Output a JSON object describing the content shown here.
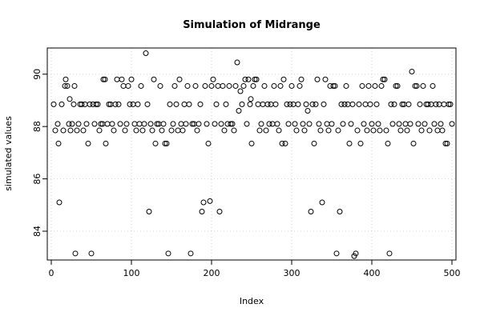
{
  "chart_data": {
    "type": "scatter",
    "title": "Simulation of Midrange",
    "xlabel": "Index",
    "ylabel": "simulated values",
    "xlim": [
      -5,
      505
    ],
    "ylim": [
      82.9,
      91.0
    ],
    "x_ticks": [
      0,
      100,
      200,
      300,
      400,
      500
    ],
    "y_ticks": [
      84,
      86,
      88,
      90
    ],
    "grid": true,
    "marker": "open-circle",
    "series": [
      {
        "points": [
          [
            3,
            88.85
          ],
          [
            5,
            87.85
          ],
          [
            8,
            88.1
          ],
          [
            9,
            87.35
          ],
          [
            10,
            85.1
          ],
          [
            13,
            88.85
          ],
          [
            15,
            87.85
          ],
          [
            17,
            89.55
          ],
          [
            18,
            89.8
          ],
          [
            20,
            89.55
          ],
          [
            22,
            88.1
          ],
          [
            23,
            89.05
          ],
          [
            24,
            87.85
          ],
          [
            26,
            88.1
          ],
          [
            28,
            88.85
          ],
          [
            29,
            89.55
          ],
          [
            30,
            83.15
          ],
          [
            32,
            87.85
          ],
          [
            34,
            88.1
          ],
          [
            36,
            88.85
          ],
          [
            38,
            88.85
          ],
          [
            40,
            87.85
          ],
          [
            42,
            88.85
          ],
          [
            44,
            88.1
          ],
          [
            46,
            87.35
          ],
          [
            48,
            88.85
          ],
          [
            50,
            83.15
          ],
          [
            52,
            88.85
          ],
          [
            54,
            88.1
          ],
          [
            56,
            88.85
          ],
          [
            58,
            88.85
          ],
          [
            60,
            87.85
          ],
          [
            62,
            88.1
          ],
          [
            64,
            88.1
          ],
          [
            65,
            89.8
          ],
          [
            67,
            89.8
          ],
          [
            68,
            87.35
          ],
          [
            70,
            88.1
          ],
          [
            72,
            88.85
          ],
          [
            74,
            88.85
          ],
          [
            76,
            88.1
          ],
          [
            78,
            87.85
          ],
          [
            80,
            88.85
          ],
          [
            82,
            89.8
          ],
          [
            84,
            88.85
          ],
          [
            86,
            88.1
          ],
          [
            88,
            89.8
          ],
          [
            90,
            89.55
          ],
          [
            92,
            87.85
          ],
          [
            94,
            88.1
          ],
          [
            96,
            89.55
          ],
          [
            98,
            88.85
          ],
          [
            100,
            89.8
          ],
          [
            102,
            88.85
          ],
          [
            104,
            88.1
          ],
          [
            106,
            87.85
          ],
          [
            108,
            88.85
          ],
          [
            110,
            88.1
          ],
          [
            112,
            89.55
          ],
          [
            114,
            87.85
          ],
          [
            116,
            88.1
          ],
          [
            118,
            90.8
          ],
          [
            120,
            88.85
          ],
          [
            122,
            84.75
          ],
          [
            124,
            88.1
          ],
          [
            126,
            87.85
          ],
          [
            128,
            89.8
          ],
          [
            130,
            87.35
          ],
          [
            132,
            88.1
          ],
          [
            134,
            88.1
          ],
          [
            136,
            89.55
          ],
          [
            138,
            87.85
          ],
          [
            140,
            88.1
          ],
          [
            142,
            87.35
          ],
          [
            144,
            87.35
          ],
          [
            146,
            83.15
          ],
          [
            148,
            88.85
          ],
          [
            150,
            87.85
          ],
          [
            152,
            88.1
          ],
          [
            154,
            89.55
          ],
          [
            156,
            88.85
          ],
          [
            158,
            87.85
          ],
          [
            160,
            89.8
          ],
          [
            162,
            88.1
          ],
          [
            164,
            87.85
          ],
          [
            166,
            88.85
          ],
          [
            168,
            88.1
          ],
          [
            170,
            89.55
          ],
          [
            172,
            88.85
          ],
          [
            174,
            83.15
          ],
          [
            176,
            88.1
          ],
          [
            178,
            88.1
          ],
          [
            180,
            89.55
          ],
          [
            182,
            87.85
          ],
          [
            184,
            88.1
          ],
          [
            186,
            88.85
          ],
          [
            188,
            84.75
          ],
          [
            190,
            85.1
          ],
          [
            192,
            89.55
          ],
          [
            194,
            88.1
          ],
          [
            196,
            87.35
          ],
          [
            198,
            85.15
          ],
          [
            200,
            89.55
          ],
          [
            202,
            89.8
          ],
          [
            204,
            88.1
          ],
          [
            206,
            88.85
          ],
          [
            208,
            89.55
          ],
          [
            210,
            84.75
          ],
          [
            212,
            88.1
          ],
          [
            214,
            89.55
          ],
          [
            216,
            87.85
          ],
          [
            218,
            88.85
          ],
          [
            220,
            88.1
          ],
          [
            222,
            89.55
          ],
          [
            224,
            88.1
          ],
          [
            226,
            88.1
          ],
          [
            228,
            87.85
          ],
          [
            230,
            89.55
          ],
          [
            232,
            90.45
          ],
          [
            234,
            88.6
          ],
          [
            236,
            89.35
          ],
          [
            238,
            88.85
          ],
          [
            240,
            89.55
          ],
          [
            242,
            89.8
          ],
          [
            244,
            88.1
          ],
          [
            246,
            89.8
          ],
          [
            248,
            88.85
          ],
          [
            249,
            89.05
          ],
          [
            250,
            87.35
          ],
          [
            252,
            89.55
          ],
          [
            254,
            89.8
          ],
          [
            256,
            89.8
          ],
          [
            258,
            88.85
          ],
          [
            260,
            87.85
          ],
          [
            262,
            88.1
          ],
          [
            264,
            88.85
          ],
          [
            266,
            89.55
          ],
          [
            268,
            87.85
          ],
          [
            270,
            88.85
          ],
          [
            272,
            88.1
          ],
          [
            274,
            88.85
          ],
          [
            276,
            88.1
          ],
          [
            278,
            89.55
          ],
          [
            280,
            88.85
          ],
          [
            282,
            88.1
          ],
          [
            284,
            87.85
          ],
          [
            286,
            89.55
          ],
          [
            288,
            87.35
          ],
          [
            290,
            89.8
          ],
          [
            292,
            87.35
          ],
          [
            294,
            88.85
          ],
          [
            296,
            88.1
          ],
          [
            298,
            88.85
          ],
          [
            300,
            89.55
          ],
          [
            302,
            88.85
          ],
          [
            304,
            88.1
          ],
          [
            306,
            87.85
          ],
          [
            308,
            88.85
          ],
          [
            310,
            89.55
          ],
          [
            312,
            89.8
          ],
          [
            314,
            88.1
          ],
          [
            316,
            87.85
          ],
          [
            318,
            88.85
          ],
          [
            320,
            88.6
          ],
          [
            322,
            88.1
          ],
          [
            324,
            84.75
          ],
          [
            326,
            88.85
          ],
          [
            328,
            87.35
          ],
          [
            330,
            88.85
          ],
          [
            332,
            89.8
          ],
          [
            334,
            88.1
          ],
          [
            336,
            87.85
          ],
          [
            338,
            85.1
          ],
          [
            340,
            88.85
          ],
          [
            342,
            89.8
          ],
          [
            344,
            88.1
          ],
          [
            346,
            87.85
          ],
          [
            348,
            89.55
          ],
          [
            350,
            88.1
          ],
          [
            352,
            89.55
          ],
          [
            354,
            89.55
          ],
          [
            356,
            83.15
          ],
          [
            358,
            87.85
          ],
          [
            360,
            84.75
          ],
          [
            362,
            88.85
          ],
          [
            364,
            88.1
          ],
          [
            366,
            88.85
          ],
          [
            368,
            89.55
          ],
          [
            370,
            88.85
          ],
          [
            372,
            87.35
          ],
          [
            374,
            88.1
          ],
          [
            376,
            88.85
          ],
          [
            378,
            83.05
          ],
          [
            380,
            83.15
          ],
          [
            382,
            87.85
          ],
          [
            384,
            88.85
          ],
          [
            386,
            87.35
          ],
          [
            388,
            89.55
          ],
          [
            390,
            88.1
          ],
          [
            392,
            88.85
          ],
          [
            394,
            87.85
          ],
          [
            396,
            89.55
          ],
          [
            398,
            88.85
          ],
          [
            400,
            88.1
          ],
          [
            402,
            87.85
          ],
          [
            404,
            89.55
          ],
          [
            406,
            88.85
          ],
          [
            408,
            88.1
          ],
          [
            410,
            87.85
          ],
          [
            412,
            89.55
          ],
          [
            414,
            89.8
          ],
          [
            416,
            89.8
          ],
          [
            418,
            87.85
          ],
          [
            420,
            87.35
          ],
          [
            422,
            83.15
          ],
          [
            424,
            88.85
          ],
          [
            426,
            88.1
          ],
          [
            428,
            88.85
          ],
          [
            430,
            89.55
          ],
          [
            432,
            89.55
          ],
          [
            434,
            88.1
          ],
          [
            436,
            87.85
          ],
          [
            438,
            88.85
          ],
          [
            440,
            88.85
          ],
          [
            442,
            88.1
          ],
          [
            444,
            87.85
          ],
          [
            446,
            88.85
          ],
          [
            448,
            88.1
          ],
          [
            450,
            90.1
          ],
          [
            452,
            87.35
          ],
          [
            454,
            89.55
          ],
          [
            456,
            89.55
          ],
          [
            458,
            88.1
          ],
          [
            460,
            88.85
          ],
          [
            462,
            87.85
          ],
          [
            464,
            89.55
          ],
          [
            466,
            88.1
          ],
          [
            468,
            88.85
          ],
          [
            470,
            88.85
          ],
          [
            472,
            87.85
          ],
          [
            474,
            88.85
          ],
          [
            476,
            89.55
          ],
          [
            478,
            88.1
          ],
          [
            480,
            88.85
          ],
          [
            482,
            87.85
          ],
          [
            484,
            88.85
          ],
          [
            486,
            88.1
          ],
          [
            488,
            87.85
          ],
          [
            490,
            88.85
          ],
          [
            492,
            87.35
          ],
          [
            494,
            87.35
          ],
          [
            496,
            88.85
          ],
          [
            498,
            88.85
          ],
          [
            500,
            88.1
          ]
        ]
      }
    ]
  }
}
